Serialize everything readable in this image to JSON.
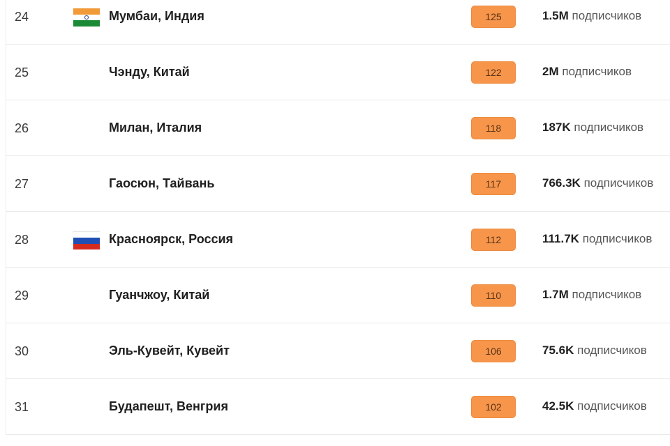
{
  "colors": {
    "score_badge": "#f7964b",
    "row_divider": "#e9e9e9"
  },
  "rows": [
    {
      "rank": "24",
      "flag": "india-flag",
      "city": "Мумбаи, Индия",
      "score": "125",
      "subs_count": "1.5M",
      "subs_label": "подписчиков"
    },
    {
      "rank": "25",
      "flag": "",
      "city": "Чэнду, Китай",
      "score": "122",
      "subs_count": "2M",
      "subs_label": "подписчиков"
    },
    {
      "rank": "26",
      "flag": "",
      "city": "Милан, Италия",
      "score": "118",
      "subs_count": "187K",
      "subs_label": "подписчиков"
    },
    {
      "rank": "27",
      "flag": "",
      "city": "Гаосюн, Тайвань",
      "score": "117",
      "subs_count": "766.3K",
      "subs_label": "подписчиков"
    },
    {
      "rank": "28",
      "flag": "russia-flag",
      "city": "Красноярск, Россия",
      "score": "112",
      "subs_count": "111.7K",
      "subs_label": "подписчиков"
    },
    {
      "rank": "29",
      "flag": "",
      "city": "Гуанчжоу, Китай",
      "score": "110",
      "subs_count": "1.7M",
      "subs_label": "подписчиков"
    },
    {
      "rank": "30",
      "flag": "",
      "city": "Эль-Кувейт, Кувейт",
      "score": "106",
      "subs_count": "75.6K",
      "subs_label": "подписчиков"
    },
    {
      "rank": "31",
      "flag": "",
      "city": "Будапешт, Венгрия",
      "score": "102",
      "subs_count": "42.5K",
      "subs_label": "подписчиков"
    }
  ]
}
